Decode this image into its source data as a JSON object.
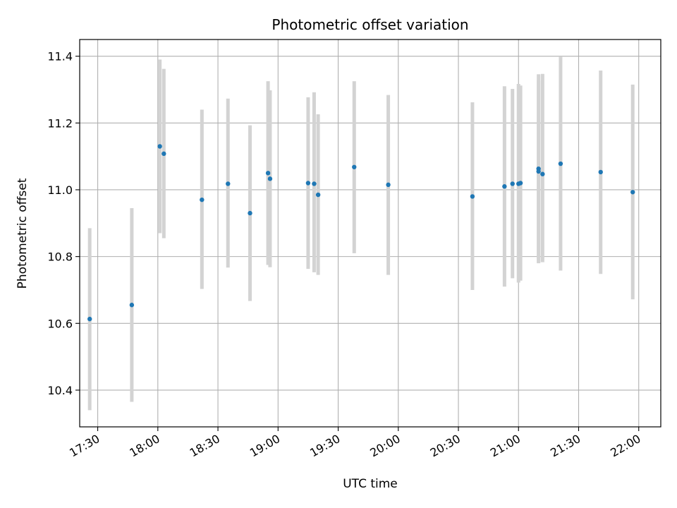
{
  "chart_data": {
    "type": "scatter",
    "title": "Photometric offset variation",
    "xlabel": "UTC time",
    "ylabel": "Photometric offset",
    "grid": true,
    "xlim": [
      "17:21",
      "22:11"
    ],
    "ylim": [
      10.29,
      11.45
    ],
    "x_ticks": [
      "17:30",
      "18:00",
      "18:30",
      "19:00",
      "19:30",
      "20:00",
      "20:30",
      "21:00",
      "21:30",
      "22:00"
    ],
    "y_ticks": [
      "10.4",
      "10.6",
      "10.8",
      "11.0",
      "11.2",
      "11.4"
    ],
    "colors": {
      "points": "#1f77b4",
      "errorbars": "#d3d3d3",
      "grid": "#b0b0b0"
    },
    "points": [
      {
        "x": "17:26",
        "y": 10.613,
        "err_low": 10.34,
        "err_high": 10.885
      },
      {
        "x": "17:47",
        "y": 10.655,
        "err_low": 10.365,
        "err_high": 10.945
      },
      {
        "x": "18:01",
        "y": 11.13,
        "err_low": 10.87,
        "err_high": 11.39
      },
      {
        "x": "18:03",
        "y": 11.108,
        "err_low": 10.855,
        "err_high": 11.362
      },
      {
        "x": "18:22",
        "y": 10.97,
        "err_low": 10.703,
        "err_high": 11.24
      },
      {
        "x": "18:35",
        "y": 11.018,
        "err_low": 10.767,
        "err_high": 11.273
      },
      {
        "x": "18:46",
        "y": 10.93,
        "err_low": 10.667,
        "err_high": 11.193
      },
      {
        "x": "18:55",
        "y": 11.05,
        "err_low": 10.775,
        "err_high": 11.325
      },
      {
        "x": "18:56",
        "y": 11.033,
        "err_low": 10.768,
        "err_high": 11.298
      },
      {
        "x": "19:15",
        "y": 11.02,
        "err_low": 10.763,
        "err_high": 11.277
      },
      {
        "x": "19:18",
        "y": 11.018,
        "err_low": 10.753,
        "err_high": 11.292
      },
      {
        "x": "19:20",
        "y": 10.985,
        "err_low": 10.745,
        "err_high": 11.226
      },
      {
        "x": "19:38",
        "y": 11.068,
        "err_low": 10.81,
        "err_high": 11.325
      },
      {
        "x": "19:55",
        "y": 11.015,
        "err_low": 10.745,
        "err_high": 11.284
      },
      {
        "x": "20:37",
        "y": 10.98,
        "err_low": 10.7,
        "err_high": 11.262
      },
      {
        "x": "20:53",
        "y": 11.01,
        "err_low": 10.71,
        "err_high": 11.31
      },
      {
        "x": "20:57",
        "y": 11.018,
        "err_low": 10.735,
        "err_high": 11.302
      },
      {
        "x": "21:00",
        "y": 11.018,
        "err_low": 10.722,
        "err_high": 11.317
      },
      {
        "x": "21:01",
        "y": 11.02,
        "err_low": 10.728,
        "err_high": 11.312
      },
      {
        "x": "21:10",
        "y": 11.063,
        "err_low": 10.78,
        "err_high": 11.346
      },
      {
        "x": "21:10",
        "y": 11.055,
        "err_low": 10.782,
        "err_high": 11.327
      },
      {
        "x": "21:12",
        "y": 11.047,
        "err_low": 10.783,
        "err_high": 11.347
      },
      {
        "x": "21:21",
        "y": 11.078,
        "err_low": 10.758,
        "err_high": 11.398
      },
      {
        "x": "21:41",
        "y": 11.053,
        "err_low": 10.748,
        "err_high": 11.357
      },
      {
        "x": "21:57",
        "y": 10.993,
        "err_low": 10.672,
        "err_high": 11.315
      }
    ]
  }
}
